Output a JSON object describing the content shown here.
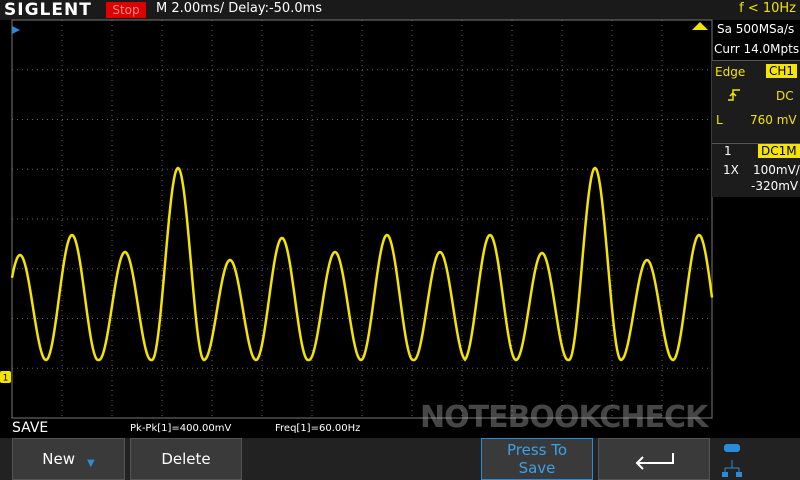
{
  "header": {
    "brand": "SIGLENT",
    "status": "Stop",
    "timebase": "M 2.00ms/ Delay:-50.0ms",
    "trigger_freq": "f < 10Hz"
  },
  "side_panel": {
    "sample_rate": "Sa 500MSa/s",
    "memory": "Curr 14.0Mpts",
    "trigger_type": "Edge",
    "trigger_source": "CH1",
    "coupling": "DC",
    "level_label": "L",
    "level": "760 mV",
    "channel": "1",
    "channel_coupling": "DC1M",
    "probe": "1X",
    "scale": "100mV/",
    "offset": "-320mV"
  },
  "status_bar": {
    "menu": "SAVE",
    "measurements": [
      "Pk-Pk[1]=400.00mV",
      "Freq[1]=60.00Hz"
    ]
  },
  "softkeys": [
    "New",
    "Delete"
  ],
  "save_button": [
    "Press To",
    "Save"
  ],
  "channel_marker": "1",
  "watermark": "NOTEBOOKCHECK"
}
